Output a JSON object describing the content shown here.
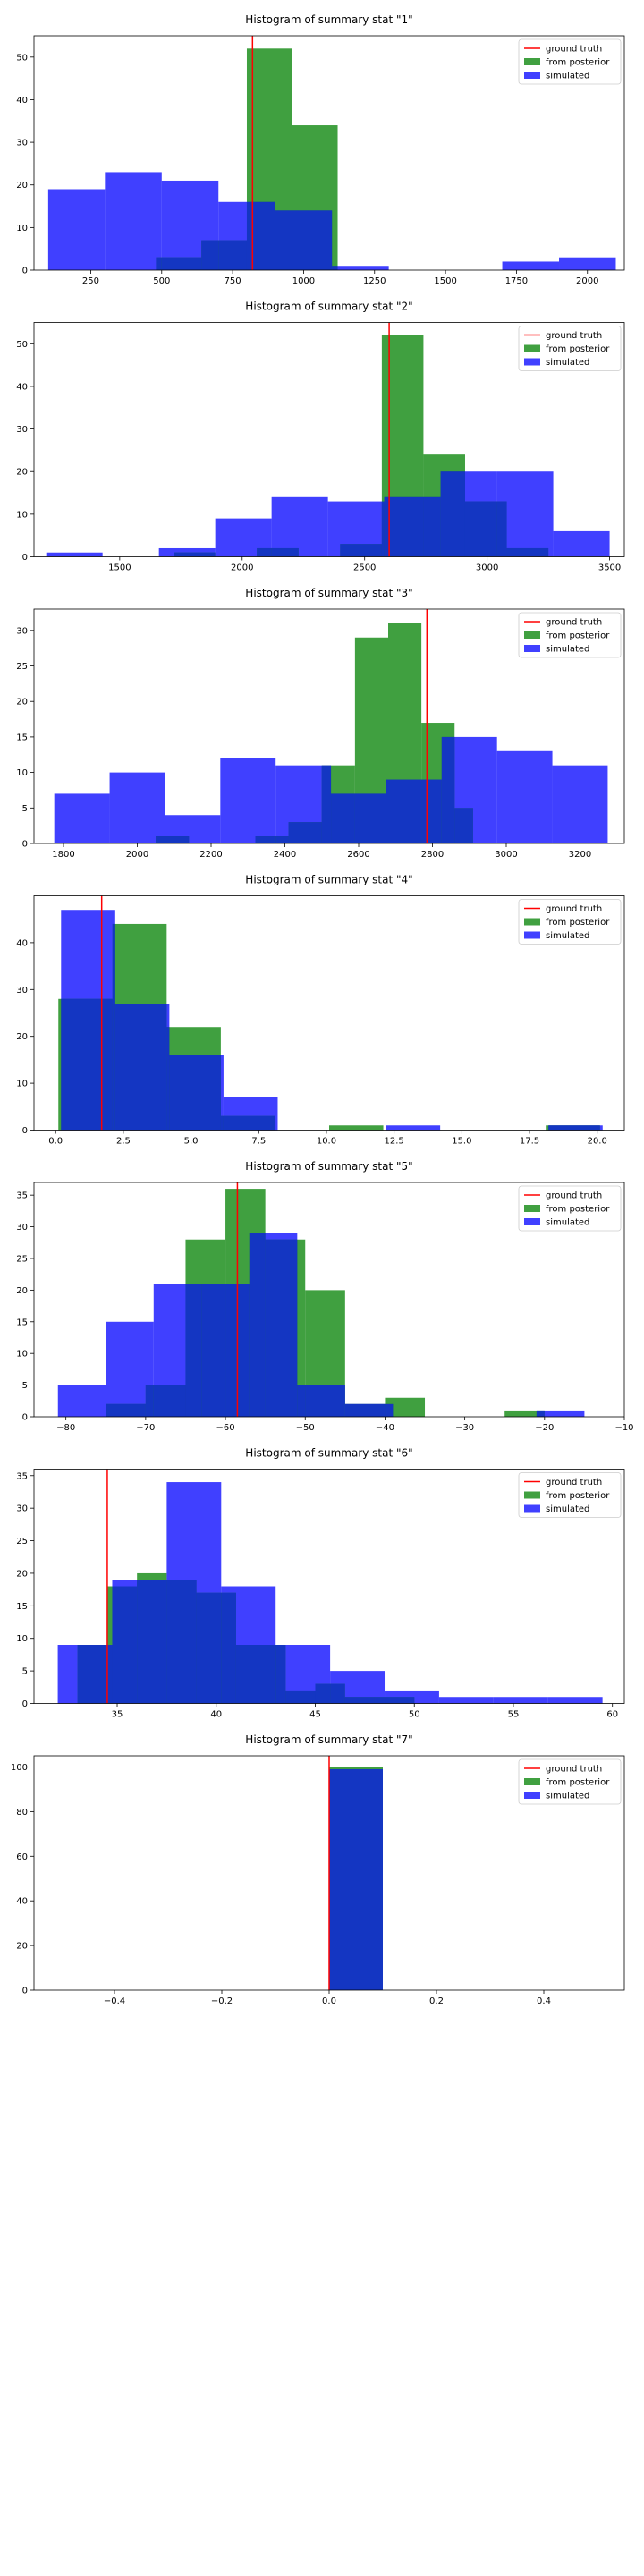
{
  "legend": {
    "ground_truth": "ground truth",
    "posterior": "from posterior",
    "simulated": "simulated"
  },
  "colors": {
    "ground_truth": "#ff0000",
    "posterior": "#008000",
    "simulated": "#0000ff",
    "overlap": "#1530d0"
  },
  "chart_data": [
    {
      "type": "bar",
      "title": "Histogram of summary stat \"1\"",
      "xlim": [
        50,
        2130
      ],
      "ylim": [
        0,
        55
      ],
      "xticks": [
        250,
        500,
        750,
        1000,
        1250,
        1500,
        1750,
        2000
      ],
      "xtick_labels": [
        "250",
        "500",
        "750",
        "1000",
        "1250",
        "1500",
        "1750",
        "2000"
      ],
      "yticks": [
        0,
        10,
        20,
        30,
        40,
        50
      ],
      "ground_truth": 820,
      "simulated_bins": [
        [
          100,
          300,
          19
        ],
        [
          300,
          500,
          23
        ],
        [
          500,
          700,
          21
        ],
        [
          700,
          900,
          16
        ],
        [
          900,
          1100,
          14
        ],
        [
          1100,
          1300,
          1
        ],
        [
          1300,
          1500,
          0
        ],
        [
          1500,
          1700,
          0
        ],
        [
          1700,
          1900,
          2
        ],
        [
          1900,
          2100,
          3
        ]
      ],
      "posterior_bins": [
        [
          480,
          640,
          3
        ],
        [
          640,
          800,
          7
        ],
        [
          800,
          960,
          52
        ],
        [
          960,
          1120,
          34
        ]
      ],
      "legend_loc": "upper right"
    },
    {
      "type": "bar",
      "title": "Histogram of summary stat \"2\"",
      "xlim": [
        1150,
        3560
      ],
      "ylim": [
        0,
        55
      ],
      "xticks": [
        1500,
        2000,
        2500,
        3000,
        3500
      ],
      "xtick_labels": [
        "1500",
        "2000",
        "2500",
        "3000",
        "3500"
      ],
      "yticks": [
        0,
        10,
        20,
        30,
        40,
        50
      ],
      "ground_truth": 2600,
      "simulated_bins": [
        [
          1200,
          1430,
          1
        ],
        [
          1430,
          1660,
          0
        ],
        [
          1660,
          1890,
          2
        ],
        [
          1890,
          2120,
          9
        ],
        [
          2120,
          2350,
          14
        ],
        [
          2350,
          2580,
          13
        ],
        [
          2580,
          2810,
          14
        ],
        [
          2810,
          3040,
          20
        ],
        [
          3040,
          3270,
          20
        ],
        [
          3270,
          3500,
          6
        ]
      ],
      "posterior_bins": [
        [
          1720,
          1890,
          1
        ],
        [
          1890,
          2060,
          0
        ],
        [
          2060,
          2230,
          2
        ],
        [
          2230,
          2400,
          0
        ],
        [
          2400,
          2570,
          3
        ],
        [
          2570,
          2740,
          52
        ],
        [
          2740,
          2910,
          24
        ],
        [
          2910,
          3080,
          13
        ],
        [
          3080,
          3250,
          2
        ],
        [
          3250,
          3320,
          0
        ]
      ],
      "legend_loc": "upper right"
    },
    {
      "type": "bar",
      "title": "Histogram of summary stat \"3\"",
      "xlim": [
        1720,
        3320
      ],
      "ylim": [
        0,
        33
      ],
      "xticks": [
        1800,
        2000,
        2200,
        2400,
        2600,
        2800,
        3000,
        3200
      ],
      "xtick_labels": [
        "1800",
        "2000",
        "2200",
        "2400",
        "2600",
        "2800",
        "3000",
        "3200"
      ],
      "yticks": [
        0,
        5,
        10,
        15,
        20,
        25,
        30
      ],
      "ground_truth": 2785,
      "simulated_bins": [
        [
          1775,
          1925,
          7
        ],
        [
          1925,
          2075,
          10
        ],
        [
          2075,
          2225,
          4
        ],
        [
          2225,
          2375,
          12
        ],
        [
          2375,
          2525,
          11
        ],
        [
          2525,
          2675,
          7
        ],
        [
          2675,
          2825,
          9
        ],
        [
          2825,
          2975,
          15
        ],
        [
          2975,
          3125,
          13
        ],
        [
          3125,
          3275,
          11
        ]
      ],
      "posterior_bins": [
        [
          2050,
          2140,
          1
        ],
        [
          2140,
          2230,
          0
        ],
        [
          2230,
          2320,
          0
        ],
        [
          2320,
          2410,
          1
        ],
        [
          2410,
          2500,
          3
        ],
        [
          2500,
          2590,
          11
        ],
        [
          2590,
          2680,
          29
        ],
        [
          2680,
          2770,
          31
        ],
        [
          2770,
          2860,
          17
        ],
        [
          2860,
          2910,
          5
        ]
      ],
      "legend_loc": "upper right"
    },
    {
      "type": "bar",
      "title": "Histogram of summary stat \"4\"",
      "xlim": [
        -0.8,
        21.0
      ],
      "ylim": [
        0,
        50
      ],
      "xticks": [
        0.0,
        2.5,
        5.0,
        7.5,
        10.0,
        12.5,
        15.0,
        17.5,
        20.0
      ],
      "xtick_labels": [
        "0.0",
        "2.5",
        "5.0",
        "7.5",
        "10.0",
        "12.5",
        "15.0",
        "17.5",
        "20.0"
      ],
      "yticks": [
        0,
        10,
        20,
        30,
        40
      ],
      "ground_truth": 1.7,
      "simulated_bins": [
        [
          0.2,
          2.2,
          47
        ],
        [
          2.2,
          4.2,
          27
        ],
        [
          4.2,
          6.2,
          16
        ],
        [
          6.2,
          8.2,
          7
        ],
        [
          8.2,
          10.2,
          0
        ],
        [
          10.2,
          12.2,
          0
        ],
        [
          12.2,
          14.2,
          1
        ],
        [
          14.2,
          16.2,
          0
        ],
        [
          16.2,
          18.2,
          0
        ],
        [
          18.2,
          20.2,
          1
        ]
      ],
      "posterior_bins": [
        [
          0.1,
          2.1,
          28
        ],
        [
          2.1,
          4.1,
          44
        ],
        [
          4.1,
          6.1,
          22
        ],
        [
          6.1,
          8.1,
          3
        ],
        [
          8.1,
          10.1,
          0
        ],
        [
          10.1,
          12.1,
          1
        ],
        [
          12.1,
          14.1,
          0
        ],
        [
          14.1,
          16.1,
          0
        ],
        [
          16.1,
          18.1,
          0
        ],
        [
          18.1,
          20.1,
          1
        ]
      ],
      "legend_loc": "upper right"
    },
    {
      "type": "bar",
      "title": "Histogram of summary stat \"5\"",
      "xlim": [
        -84,
        -10
      ],
      "ylim": [
        0,
        37
      ],
      "xticks": [
        -80,
        -70,
        -60,
        -50,
        -40,
        -30,
        -20,
        -10
      ],
      "xtick_labels": [
        "−80",
        "−70",
        "−60",
        "−50",
        "−40",
        "−30",
        "−20",
        "−10"
      ],
      "yticks": [
        0,
        5,
        10,
        15,
        20,
        25,
        30,
        35
      ],
      "ground_truth": -58.5,
      "simulated_bins": [
        [
          -81,
          -75,
          5
        ],
        [
          -75,
          -69,
          15
        ],
        [
          -69,
          -63,
          21
        ],
        [
          -63,
          -57,
          21
        ],
        [
          -57,
          -51,
          29
        ],
        [
          -51,
          -45,
          5
        ],
        [
          -45,
          -39,
          2
        ],
        [
          -39,
          -33,
          0
        ],
        [
          -33,
          -27,
          0
        ],
        [
          -27,
          -21,
          0
        ],
        [
          -21,
          -15,
          1
        ]
      ],
      "posterior_bins": [
        [
          -75,
          -70,
          2
        ],
        [
          -70,
          -65,
          5
        ],
        [
          -65,
          -60,
          28
        ],
        [
          -60,
          -55,
          36
        ],
        [
          -55,
          -50,
          28
        ],
        [
          -50,
          -45,
          20
        ],
        [
          -45,
          -40,
          2
        ],
        [
          -40,
          -35,
          3
        ],
        [
          -35,
          -30,
          0
        ],
        [
          -30,
          -25,
          0
        ],
        [
          -25,
          -20,
          1
        ]
      ],
      "legend_loc": "upper right"
    },
    {
      "type": "bar",
      "title": "Histogram of summary stat \"6\"",
      "xlim": [
        30.8,
        60.6
      ],
      "ylim": [
        0,
        36
      ],
      "xticks": [
        35,
        40,
        45,
        50,
        55,
        60
      ],
      "xtick_labels": [
        "35",
        "40",
        "45",
        "50",
        "55",
        "60"
      ],
      "yticks": [
        0,
        5,
        10,
        15,
        20,
        25,
        30,
        35
      ],
      "ground_truth": 34.5,
      "simulated_bins": [
        [
          32.0,
          34.75,
          9
        ],
        [
          34.75,
          37.5,
          19
        ],
        [
          37.5,
          40.25,
          34
        ],
        [
          40.25,
          43.0,
          18
        ],
        [
          43.0,
          45.75,
          9
        ],
        [
          45.75,
          48.5,
          5
        ],
        [
          48.5,
          51.25,
          2
        ],
        [
          51.25,
          54.0,
          1
        ],
        [
          54.0,
          56.75,
          1
        ],
        [
          56.75,
          59.5,
          1
        ]
      ],
      "posterior_bins": [
        [
          33.0,
          34.5,
          9
        ],
        [
          34.5,
          36.0,
          18
        ],
        [
          36.0,
          37.5,
          20
        ],
        [
          37.5,
          39.0,
          19
        ],
        [
          39.0,
          41.0,
          17
        ],
        [
          41.0,
          43.5,
          9
        ],
        [
          43.5,
          45.0,
          2
        ],
        [
          45.0,
          46.5,
          3
        ],
        [
          46.5,
          48.0,
          1
        ],
        [
          48.0,
          50.0,
          1
        ]
      ],
      "legend_loc": "upper right"
    },
    {
      "type": "bar",
      "title": "Histogram of summary stat \"7\"",
      "xlim": [
        -0.55,
        0.55
      ],
      "ylim": [
        0,
        105
      ],
      "xticks": [
        -0.4,
        -0.2,
        0.0,
        0.2,
        0.4
      ],
      "xtick_labels": [
        "−0.4",
        "−0.2",
        "0.0",
        "0.2",
        "0.4"
      ],
      "yticks": [
        0,
        20,
        40,
        60,
        80,
        100
      ],
      "ground_truth": 0.0,
      "simulated_bins": [
        [
          0.0,
          0.1,
          99
        ]
      ],
      "posterior_bins": [
        [
          0.0,
          0.1,
          100
        ]
      ],
      "legend_loc": "upper right"
    }
  ]
}
